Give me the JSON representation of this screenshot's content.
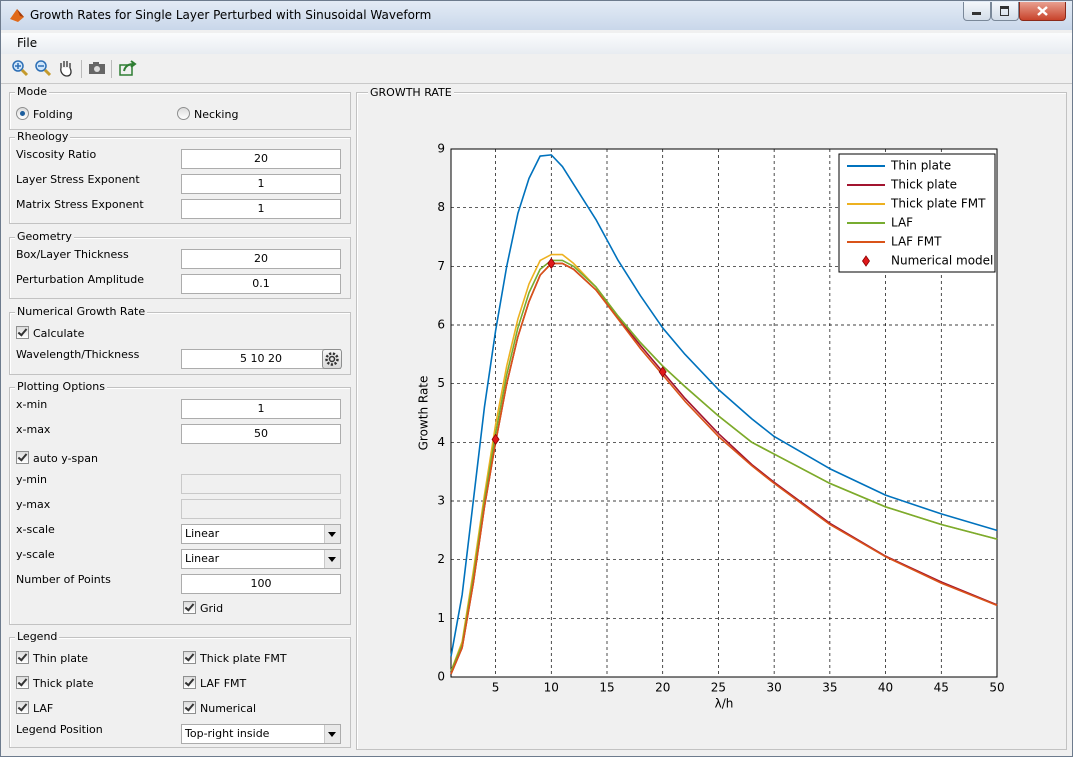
{
  "window": {
    "title": "Growth Rates for Single Layer Perturbed with Sinusoidal Waveform"
  },
  "menu": [
    "File"
  ],
  "panels": [
    {
      "title": "Mode",
      "rows": [
        {
          "options": [
            {
              "label": "Folding",
              "selected": true
            },
            {
              "label": "Necking",
              "selected": false
            }
          ]
        }
      ]
    },
    {
      "title": "Rheology",
      "rows": [
        {
          "label": "Viscosity Ratio",
          "value": "20"
        },
        {
          "label": "Layer Stress Exponent",
          "value": "1"
        },
        {
          "label": "Matrix Stress Exponent",
          "value": "1"
        }
      ]
    },
    {
      "title": "Geometry",
      "rows": [
        {
          "label": "Box/Layer Thickness",
          "value": "20"
        },
        {
          "label": "Perturbation Amplitude",
          "value": "0.1"
        }
      ]
    },
    {
      "title": "Numerical Growth Rate",
      "rows": [
        {
          "label": "Calculate",
          "checked": true
        },
        {
          "label": "Wavelength/Thickness",
          "value": "5  10  20"
        }
      ]
    },
    {
      "title": "Plotting Options",
      "rows": [
        {
          "label": "x-min",
          "value": "1"
        },
        {
          "label": "x-max",
          "value": "50"
        },
        {
          "label": "auto y-span",
          "checked": true
        },
        {
          "label": "y-min"
        },
        {
          "label": "y-max"
        },
        {
          "label": "x-scale",
          "option": "Linear"
        },
        {
          "label": "y-scale",
          "option": "Linear"
        },
        {
          "label": "Number of Points",
          "value": "100"
        },
        {
          "label": "Grid",
          "checked": true
        }
      ]
    },
    {
      "title": "Legend",
      "rows": [
        {
          "checks": [
            {
              "label": "Thin plate",
              "checked": true
            },
            {
              "label": "Thick plate FMT",
              "checked": true
            }
          ]
        },
        {
          "checks": [
            {
              "label": "Thick plate",
              "checked": true
            },
            {
              "label": "LAF FMT",
              "checked": true
            }
          ]
        },
        {
          "checks": [
            {
              "label": "LAF",
              "checked": true
            },
            {
              "label": "Numerical",
              "checked": true
            }
          ]
        },
        {
          "label": "Legend Position",
          "option": "Top-right inside"
        }
      ]
    }
  ],
  "chart_data": {
    "type": "line",
    "title": "GROWTH RATE",
    "x_label": "λ/h",
    "y_label": "Growth Rate",
    "x": [
      1,
      2,
      3,
      4,
      5,
      6,
      7,
      8,
      9,
      10,
      11,
      12,
      14,
      16,
      18,
      20,
      22,
      25,
      28,
      30,
      35,
      40,
      45,
      50
    ],
    "series": [
      {
        "name": "Thin plate",
        "color": "#0072bd",
        "values": [
          0.35,
          1.4,
          3.0,
          4.6,
          5.9,
          7.0,
          7.9,
          8.5,
          8.88,
          8.9,
          8.7,
          8.4,
          7.8,
          7.1,
          6.5,
          5.95,
          5.5,
          4.9,
          4.4,
          4.1,
          3.55,
          3.1,
          2.78,
          2.5
        ]
      },
      {
        "name": "Thick plate",
        "color": "#a2142f",
        "values": [
          0.05,
          0.5,
          1.6,
          2.9,
          4.0,
          5.0,
          5.8,
          6.4,
          6.85,
          7.05,
          7.05,
          6.95,
          6.6,
          6.12,
          5.65,
          5.2,
          4.75,
          4.15,
          3.62,
          3.32,
          2.62,
          2.06,
          1.62,
          1.23
        ]
      },
      {
        "name": "Thick plate FMT",
        "color": "#edb120",
        "values": [
          0.1,
          0.6,
          1.8,
          3.1,
          4.3,
          5.3,
          6.1,
          6.7,
          7.1,
          7.2,
          7.2,
          7.05,
          6.65,
          6.15,
          5.7,
          5.3,
          4.95,
          4.45,
          4.0,
          3.8,
          3.3,
          2.9,
          2.6,
          2.35
        ]
      },
      {
        "name": "LAF",
        "color": "#77ac30",
        "values": [
          0.1,
          0.55,
          1.7,
          3.0,
          4.15,
          5.15,
          5.95,
          6.55,
          6.95,
          7.1,
          7.1,
          7.0,
          6.65,
          6.15,
          5.7,
          5.3,
          4.95,
          4.45,
          4.0,
          3.8,
          3.3,
          2.9,
          2.6,
          2.35
        ]
      },
      {
        "name": "LAF FMT",
        "color": "#d95319",
        "values": [
          0.05,
          0.5,
          1.6,
          2.9,
          4.0,
          5.0,
          5.8,
          6.4,
          6.85,
          7.05,
          7.05,
          6.95,
          6.6,
          6.1,
          5.6,
          5.15,
          4.7,
          4.1,
          3.6,
          3.3,
          2.6,
          2.05,
          1.6,
          1.22
        ]
      },
      {
        "name": "Numerical model",
        "type": "scatter",
        "marker": "diamond",
        "color": "#e0181a",
        "x": [
          5,
          10,
          20
        ],
        "values": [
          4.05,
          7.05,
          5.2
        ]
      }
    ],
    "xlim": [
      1,
      50
    ],
    "ylim": [
      0,
      9
    ],
    "xticks": [
      5,
      10,
      15,
      20,
      25,
      30,
      35,
      40,
      45,
      50
    ],
    "yticks": [
      0,
      1,
      2,
      3,
      4,
      5,
      6,
      7,
      8,
      9
    ],
    "grid": true,
    "legend": "northeast"
  }
}
